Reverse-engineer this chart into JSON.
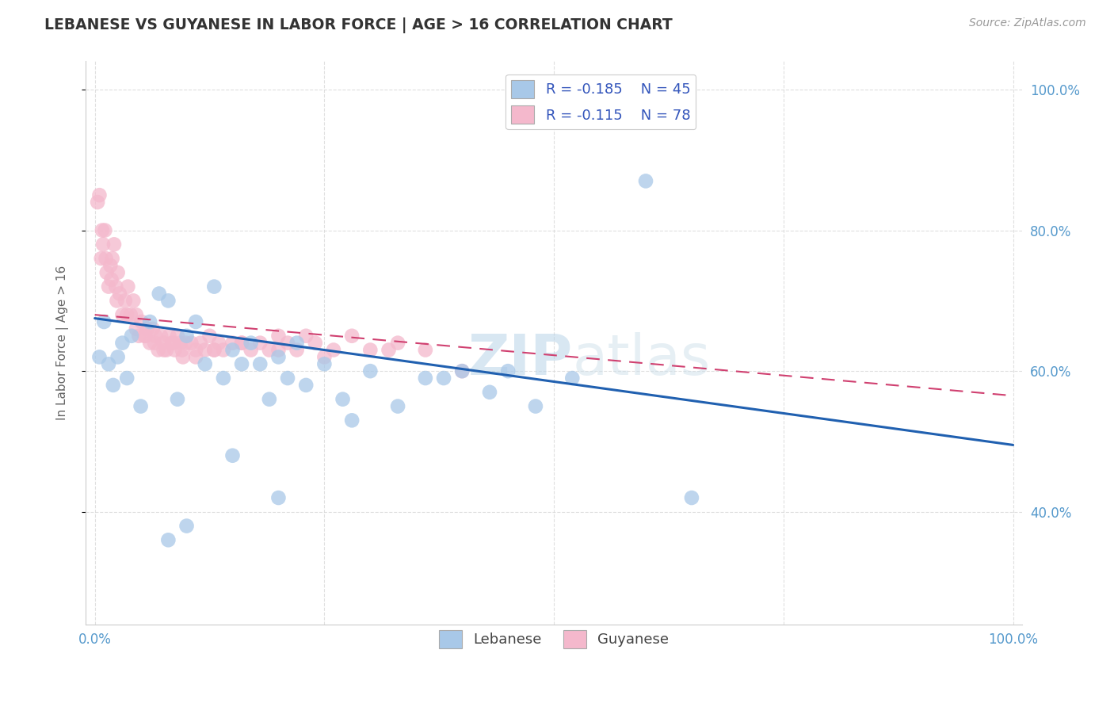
{
  "title": "LEBANESE VS GUYANESE IN LABOR FORCE | AGE > 16 CORRELATION CHART",
  "source_text": "Source: ZipAtlas.com",
  "ylabel": "In Labor Force | Age > 16",
  "xlim": [
    -0.01,
    1.01
  ],
  "ylim": [
    0.24,
    1.04
  ],
  "x_tick_positions": [
    0.0,
    0.25,
    0.5,
    0.75,
    1.0
  ],
  "x_tick_labels": [
    "0.0%",
    "",
    "",
    "",
    "100.0%"
  ],
  "y_tick_positions": [
    0.4,
    0.6,
    0.8,
    1.0
  ],
  "y_tick_labels": [
    "40.0%",
    "60.0%",
    "80.0%",
    "100.0%"
  ],
  "blue_color": "#a8c8e8",
  "pink_color": "#f4b8cc",
  "trend_blue_color": "#2060b0",
  "trend_pink_color": "#d04070",
  "grid_color": "#d8d8d8",
  "background_color": "#ffffff",
  "watermark_color": "#d8e8f0",
  "watermark_text": "ZIPatlas",
  "legend_r1": "-0.185",
  "legend_n1": "45",
  "legend_r2": "-0.115",
  "legend_n2": "78",
  "blue_trend_x0": 0.0,
  "blue_trend_y0": 0.675,
  "blue_trend_x1": 1.0,
  "blue_trend_y1": 0.495,
  "pink_trend_x0": 0.0,
  "pink_trend_y0": 0.68,
  "pink_trend_x1": 1.0,
  "pink_trend_y1": 0.565,
  "blue_x": [
    0.005,
    0.01,
    0.015,
    0.02,
    0.025,
    0.03,
    0.035,
    0.04,
    0.05,
    0.06,
    0.07,
    0.08,
    0.09,
    0.1,
    0.11,
    0.12,
    0.13,
    0.14,
    0.15,
    0.16,
    0.17,
    0.18,
    0.19,
    0.2,
    0.21,
    0.22,
    0.23,
    0.25,
    0.27,
    0.3,
    0.33,
    0.36,
    0.4,
    0.43,
    0.48,
    0.52,
    0.6,
    0.38,
    0.28,
    0.45,
    0.15,
    0.2,
    0.1,
    0.08,
    0.65
  ],
  "blue_y": [
    0.62,
    0.67,
    0.61,
    0.58,
    0.62,
    0.64,
    0.59,
    0.65,
    0.55,
    0.67,
    0.71,
    0.7,
    0.56,
    0.65,
    0.67,
    0.61,
    0.72,
    0.59,
    0.63,
    0.61,
    0.64,
    0.61,
    0.56,
    0.62,
    0.59,
    0.64,
    0.58,
    0.61,
    0.56,
    0.6,
    0.55,
    0.59,
    0.6,
    0.57,
    0.55,
    0.59,
    0.87,
    0.59,
    0.53,
    0.6,
    0.48,
    0.42,
    0.38,
    0.36,
    0.42
  ],
  "pink_x": [
    0.003,
    0.005,
    0.007,
    0.009,
    0.011,
    0.013,
    0.015,
    0.017,
    0.019,
    0.021,
    0.023,
    0.025,
    0.027,
    0.03,
    0.033,
    0.036,
    0.039,
    0.042,
    0.045,
    0.048,
    0.051,
    0.054,
    0.057,
    0.06,
    0.063,
    0.066,
    0.069,
    0.072,
    0.075,
    0.078,
    0.081,
    0.084,
    0.087,
    0.09,
    0.093,
    0.096,
    0.099,
    0.105,
    0.11,
    0.115,
    0.12,
    0.125,
    0.13,
    0.135,
    0.14,
    0.15,
    0.16,
    0.17,
    0.18,
    0.19,
    0.2,
    0.21,
    0.22,
    0.23,
    0.24,
    0.26,
    0.28,
    0.3,
    0.33,
    0.36,
    0.008,
    0.012,
    0.018,
    0.024,
    0.035,
    0.045,
    0.055,
    0.065,
    0.075,
    0.085,
    0.095,
    0.11,
    0.13,
    0.16,
    0.2,
    0.25,
    0.32,
    0.4
  ],
  "pink_y": [
    0.84,
    0.85,
    0.76,
    0.78,
    0.8,
    0.74,
    0.72,
    0.75,
    0.76,
    0.78,
    0.72,
    0.74,
    0.71,
    0.68,
    0.7,
    0.72,
    0.68,
    0.7,
    0.68,
    0.65,
    0.67,
    0.65,
    0.66,
    0.64,
    0.66,
    0.65,
    0.63,
    0.65,
    0.64,
    0.63,
    0.65,
    0.64,
    0.63,
    0.65,
    0.64,
    0.62,
    0.64,
    0.64,
    0.63,
    0.64,
    0.63,
    0.65,
    0.63,
    0.64,
    0.63,
    0.64,
    0.64,
    0.63,
    0.64,
    0.63,
    0.65,
    0.64,
    0.63,
    0.65,
    0.64,
    0.63,
    0.65,
    0.63,
    0.64,
    0.63,
    0.8,
    0.76,
    0.73,
    0.7,
    0.68,
    0.66,
    0.65,
    0.64,
    0.63,
    0.64,
    0.63,
    0.62,
    0.63,
    0.64,
    0.63,
    0.62,
    0.63,
    0.6
  ]
}
